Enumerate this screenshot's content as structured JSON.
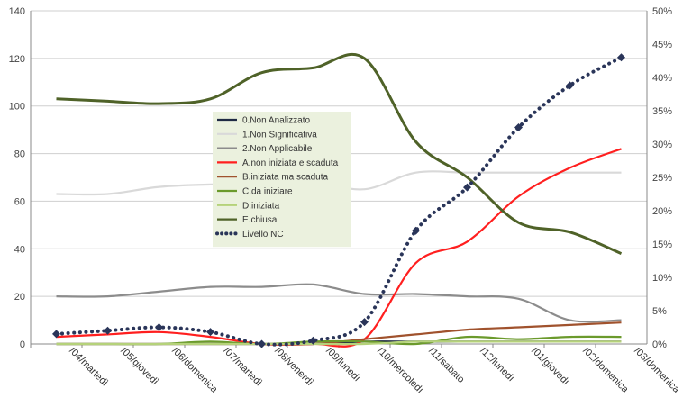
{
  "chart_data": {
    "type": "line",
    "categories": [
      "/04/martedì",
      "/05/giovedì",
      "/06/domenica",
      "/07/martedì",
      "/08/venerdì",
      "/09/lunedì",
      "/10/mercoledì",
      "/11/sabato",
      "/12/lunedì",
      "/01/giovedì",
      "/02/domenica",
      "/03/domenica"
    ],
    "y_left": {
      "range": [
        0,
        140
      ],
      "ticks": [
        "0",
        "20",
        "40",
        "60",
        "80",
        "100",
        "120",
        "140"
      ]
    },
    "y_right": {
      "range": [
        0,
        50
      ],
      "ticks": [
        "0%",
        "5%",
        "10%",
        "15%",
        "20%",
        "25%",
        "30%",
        "35%",
        "40%",
        "45%",
        "50%"
      ]
    },
    "grid": true,
    "legend_position": "center-left",
    "series": [
      {
        "name": "0.Non Analizzato",
        "axis": "left",
        "color": "#1f2a44",
        "style": "line",
        "values": [
          0,
          0,
          0,
          0,
          0,
          0,
          1,
          1,
          1,
          1,
          1,
          1
        ]
      },
      {
        "name": "1.Non Significativa",
        "axis": "left",
        "color": "#d9d9d9",
        "style": "line",
        "values": [
          63,
          63,
          66,
          67,
          67,
          68,
          65,
          72,
          72,
          72,
          72,
          72
        ]
      },
      {
        "name": "2.Non Applicabile",
        "axis": "left",
        "color": "#8c8c8c",
        "style": "line",
        "values": [
          20,
          20,
          22,
          24,
          24,
          25,
          21,
          21,
          20,
          19,
          10,
          10
        ]
      },
      {
        "name": "A.non iniziata e scaduta",
        "axis": "left",
        "color": "#ff1f1f",
        "style": "line",
        "values": [
          3,
          4,
          5,
          3,
          0,
          0,
          2,
          34,
          43,
          62,
          74,
          82
        ]
      },
      {
        "name": "B.iniziata ma scaduta",
        "axis": "left",
        "color": "#a0522d",
        "style": "line",
        "values": [
          0,
          0,
          0,
          0,
          0,
          0,
          2,
          4,
          6,
          7,
          8,
          9
        ]
      },
      {
        "name": "C.da iniziare",
        "axis": "left",
        "color": "#6b9a2c",
        "style": "line",
        "values": [
          0,
          0,
          0,
          1,
          0,
          1,
          1,
          0,
          3,
          2,
          3,
          3
        ]
      },
      {
        "name": "D.iniziata",
        "axis": "left",
        "color": "#b5d27a",
        "style": "line",
        "values": [
          0,
          0,
          0,
          0,
          0,
          0,
          0,
          1,
          1,
          1,
          1,
          1
        ]
      },
      {
        "name": "E.chiusa",
        "axis": "left",
        "color": "#4f6228",
        "style": "line",
        "values": [
          103,
          102,
          101,
          103,
          114,
          116,
          120,
          85,
          70,
          51,
          47,
          38
        ]
      },
      {
        "name": "Livello NC",
        "axis": "right",
        "color": "#2a3559",
        "style": "dotted-markers",
        "values": [
          1.5,
          2.0,
          2.5,
          1.8,
          0.0,
          0.5,
          3.3,
          17.0,
          23.5,
          32.5,
          38.8,
          43.0
        ]
      }
    ]
  }
}
